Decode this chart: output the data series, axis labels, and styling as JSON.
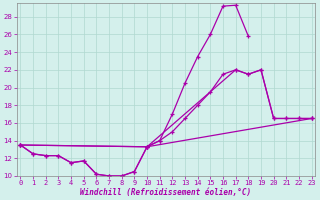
{
  "xlabel": "Windchill (Refroidissement éolien,°C)",
  "bg_color": "#d4f0ec",
  "line_color": "#aa00aa",
  "grid_color": "#b0d8d0",
  "x_data": [
    0,
    1,
    2,
    3,
    4,
    5,
    6,
    7,
    8,
    9,
    10,
    11,
    12,
    13,
    14,
    15,
    16,
    17,
    18,
    19,
    20,
    21,
    22,
    23
  ],
  "curve1_x": [
    0,
    1,
    2,
    3,
    4,
    5,
    6,
    7,
    8,
    9,
    10,
    11,
    12,
    13,
    14,
    15,
    16,
    17,
    18
  ],
  "curve1_y": [
    13.5,
    12.5,
    12.3,
    12.3,
    11.5,
    11.7,
    10.2,
    10.0,
    10.0,
    10.5,
    13.3,
    14.0,
    17.0,
    20.5,
    23.5,
    26.0,
    29.2,
    29.3,
    25.8
  ],
  "curve2_x": [
    0,
    1,
    2,
    3,
    4,
    5,
    6,
    7,
    8,
    9,
    10,
    11,
    12,
    13,
    14,
    15,
    16,
    17,
    18,
    19,
    20,
    21,
    22,
    23
  ],
  "curve2_y": [
    13.5,
    12.5,
    12.3,
    12.3,
    11.5,
    11.7,
    10.2,
    10.0,
    10.0,
    10.5,
    13.3,
    14.0,
    15.0,
    16.5,
    18.0,
    19.5,
    21.5,
    22.0,
    21.5,
    22.0,
    16.5,
    16.5,
    16.5,
    16.5
  ],
  "curve3_x": [
    0,
    10,
    23
  ],
  "curve3_y": [
    13.5,
    13.3,
    16.5
  ],
  "curve4_x": [
    0,
    10,
    17,
    18,
    19,
    20,
    21,
    22,
    23
  ],
  "curve4_y": [
    13.5,
    13.3,
    22.0,
    21.5,
    22.0,
    16.5,
    16.5,
    16.5,
    16.5
  ],
  "ylim": [
    10,
    29.5
  ],
  "xlim": [
    -0.3,
    23.3
  ],
  "yticks": [
    10,
    12,
    14,
    16,
    18,
    20,
    22,
    24,
    26,
    28
  ],
  "xticks": [
    0,
    1,
    2,
    3,
    4,
    5,
    6,
    7,
    8,
    9,
    10,
    11,
    12,
    13,
    14,
    15,
    16,
    17,
    18,
    19,
    20,
    21,
    22,
    23
  ]
}
